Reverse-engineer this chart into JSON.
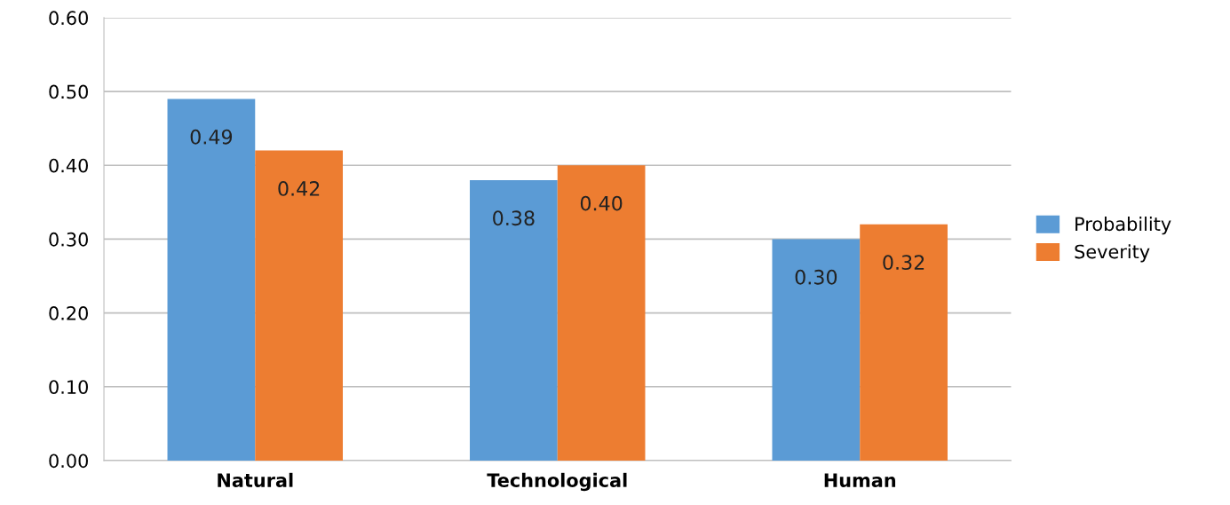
{
  "chart_data": {
    "type": "bar",
    "categories": [
      "Natural",
      "Technological",
      "Human"
    ],
    "series": [
      {
        "name": "Probability",
        "color": "#5b9bd5",
        "values": [
          0.49,
          0.38,
          0.3
        ],
        "value_labels": [
          "0.49",
          "0.38",
          "0.30"
        ]
      },
      {
        "name": "Severity",
        "color": "#ed7d31",
        "values": [
          0.42,
          0.4,
          0.32
        ],
        "value_labels": [
          "0.42",
          "0.40",
          "0.32"
        ]
      }
    ],
    "ylim": [
      0,
      0.6
    ],
    "yticks": [
      {
        "value": 0,
        "label": "0.00"
      },
      {
        "value": 0.1,
        "label": "0.10"
      },
      {
        "value": 0.2,
        "label": "0.20"
      },
      {
        "value": 0.3,
        "label": "0.30"
      },
      {
        "value": 0.4,
        "label": "0.40"
      },
      {
        "value": 0.5,
        "label": "0.50"
      },
      {
        "value": 0.6,
        "label": "0.60"
      }
    ],
    "grid": "y",
    "legend": "right"
  }
}
